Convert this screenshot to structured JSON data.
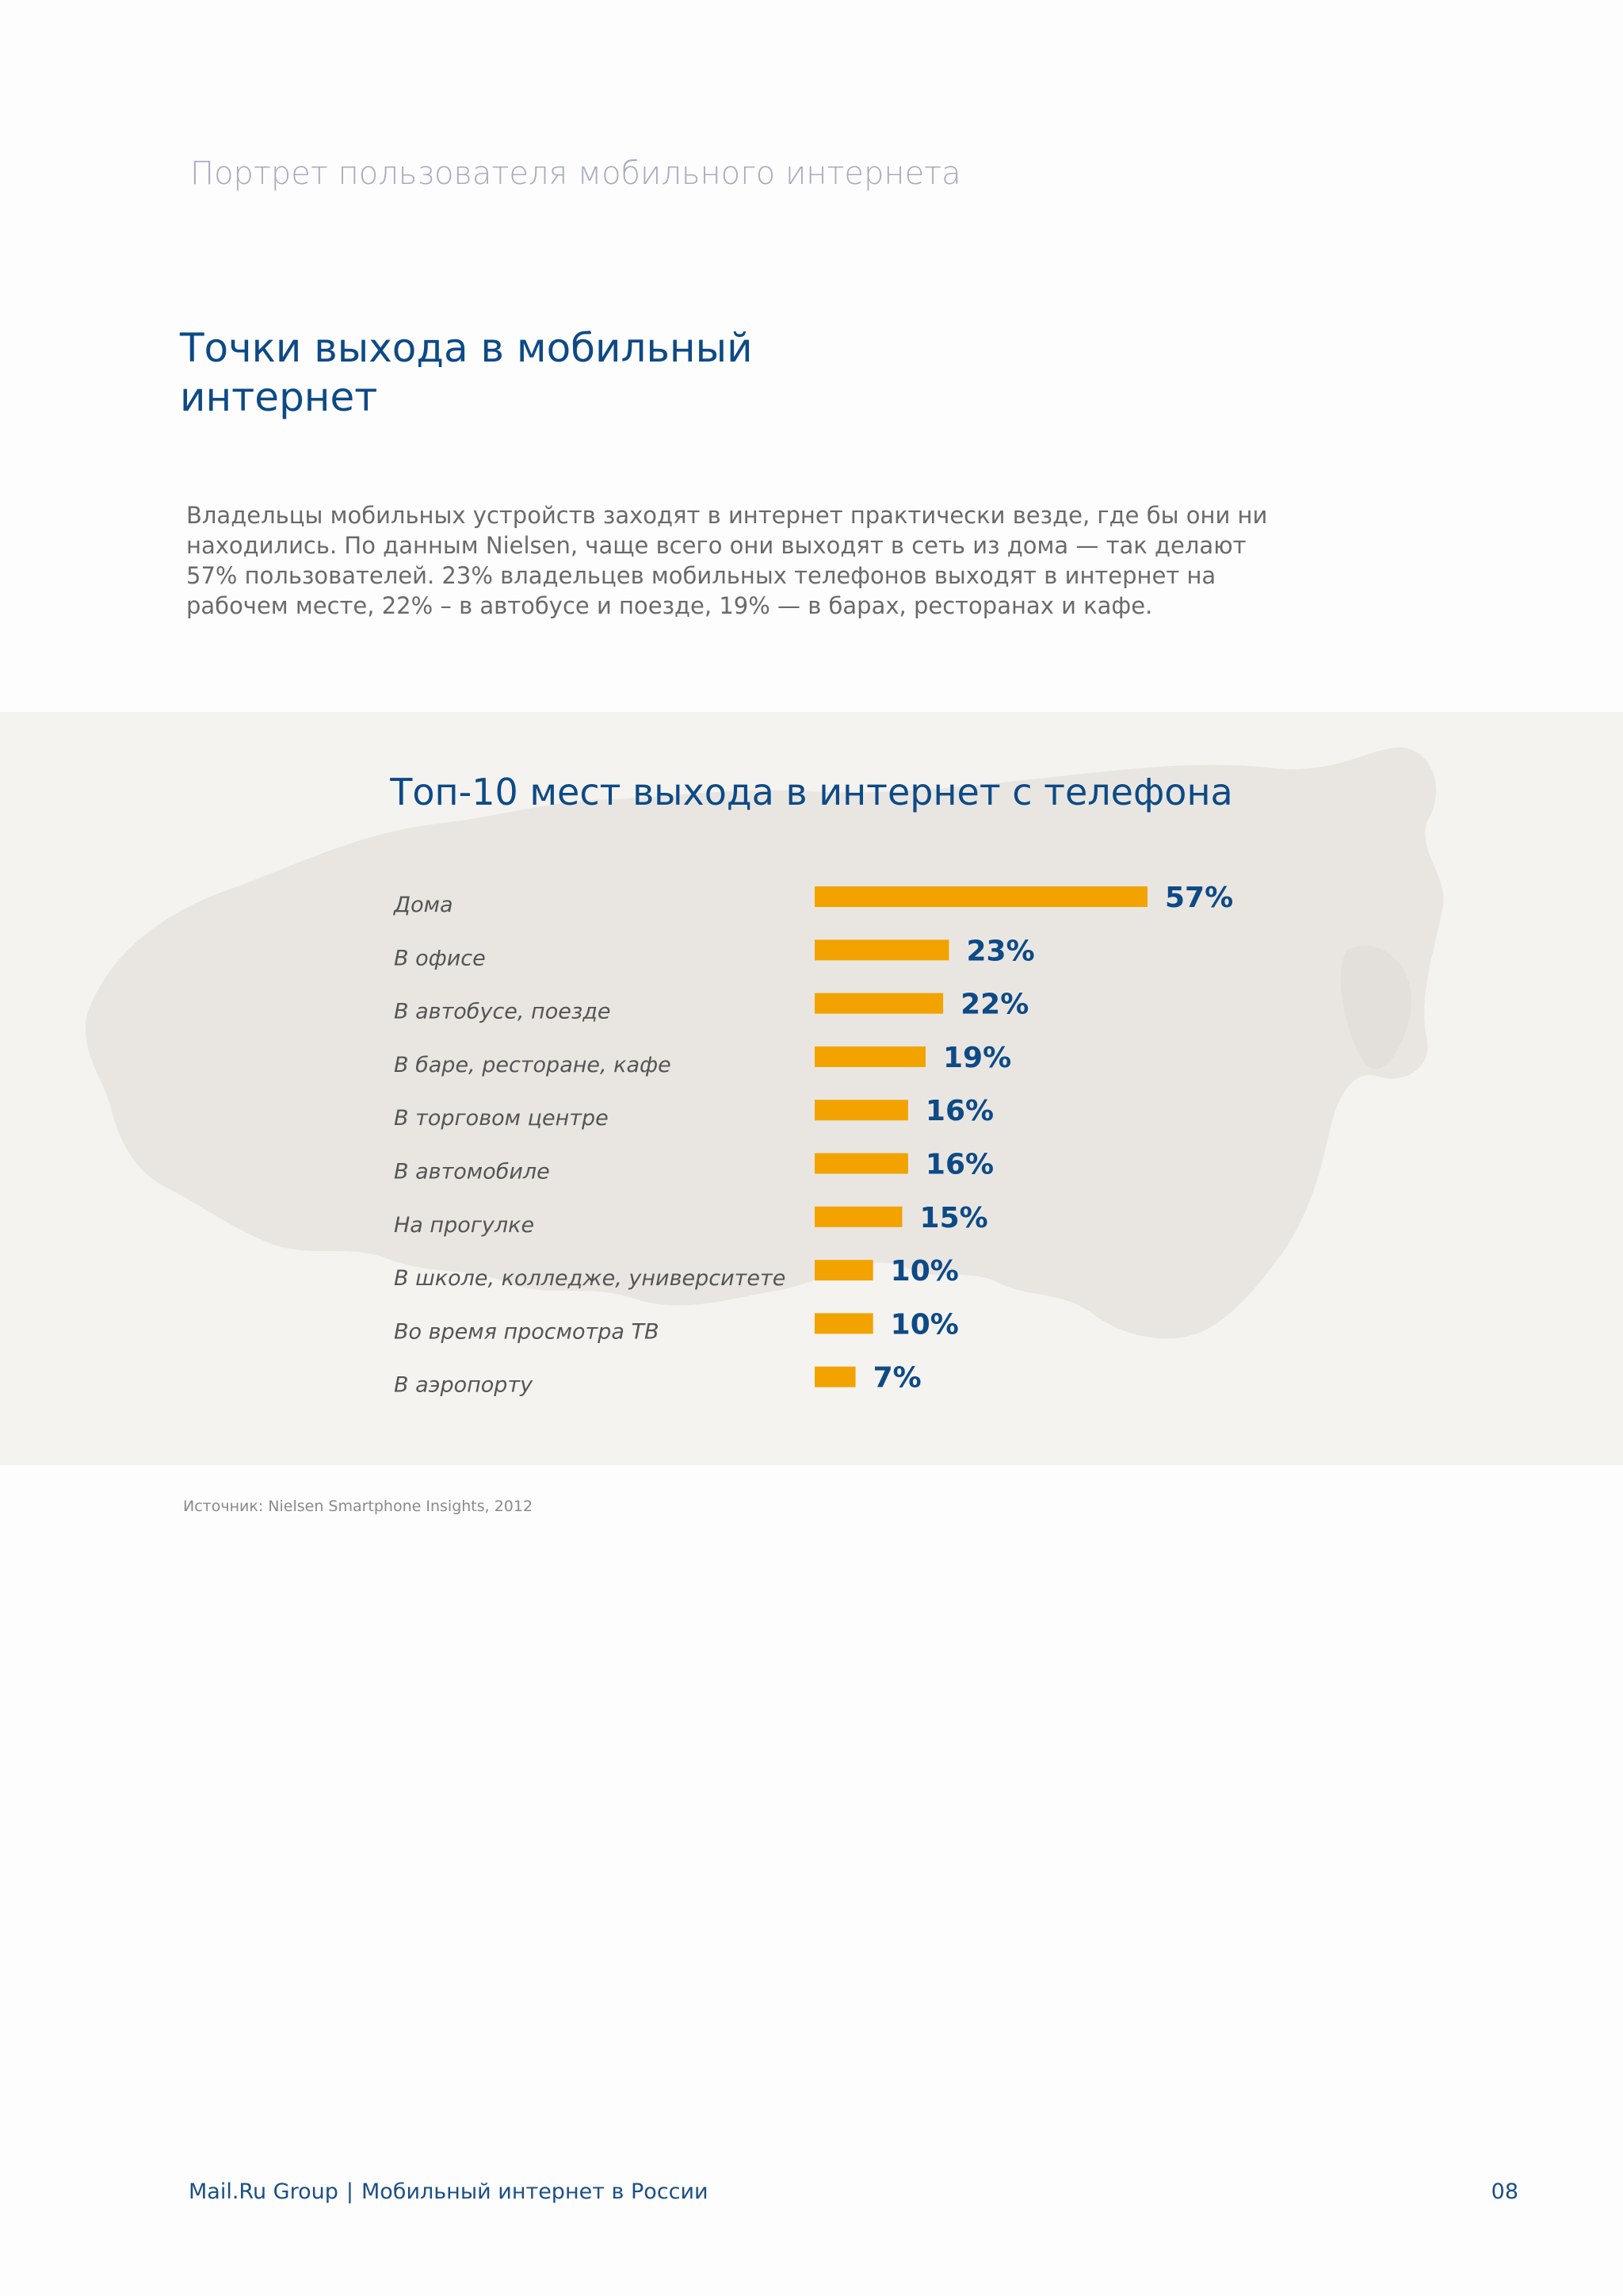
{
  "header": {
    "running_title": "Портрет пользователя мобильного интернета"
  },
  "section": {
    "title": "Точки выхода в мобильный интернет",
    "intro": "Владельцы мобильных устройств заходят в интернет практически везде, где бы они ни находились. По данным Nielsen, чаще всего они выходят в сеть из дома — так делают 57% пользователей. 23% владельцев мобильных телефонов выходят в интернет на рабочем месте, 22% –  в автобусе и поезде,  19% — в барах, ресторанах и кафе."
  },
  "chart_data": {
    "type": "bar",
    "orientation": "horizontal",
    "title": "Топ-10 мест выхода в интернет с телефона",
    "categories": [
      "Дома",
      "В офисе",
      "В автобусе, поезде",
      "В баре, ресторане, кафе",
      "В торговом центре",
      "В автомобиле",
      "На прогулке",
      "В школе, колледже, университете",
      "Во время просмотра ТВ",
      "В аэропорту"
    ],
    "values": [
      57,
      23,
      22,
      19,
      16,
      16,
      15,
      10,
      10,
      7
    ],
    "value_labels": [
      "57%",
      "23%",
      "22%",
      "19%",
      "16%",
      "16%",
      "15%",
      "10%",
      "10%",
      "7%"
    ],
    "unit": "%",
    "xlim": [
      0,
      57
    ],
    "bar_color": "#f2a300",
    "label_color": "#0d4a86",
    "category_color": "#555555"
  },
  "source": "Источник: Nielsen Smartphone Insights, 2012",
  "footer": {
    "brand": "Mail.Ru Group",
    "separator": "|",
    "doc_title": "Мобильный интернет в России",
    "page": "08"
  },
  "colors": {
    "accent": "#0d4a86",
    "running_title": "#a7aac0",
    "band_bg": "#f5f3f0",
    "map_fill": "#e9e6e2"
  }
}
